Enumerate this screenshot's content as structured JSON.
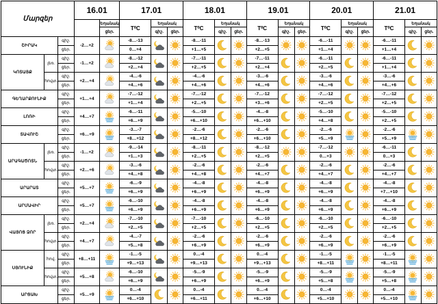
{
  "header": {
    "corner": "Մարզեր",
    "temp_label": "T⁰C",
    "weather_label": "Եղանակ",
    "night": "գիշ.",
    "day": "ցեր."
  },
  "dates": [
    "16.01",
    "17.01",
    "18.01",
    "19.01",
    "20.01",
    "21.01"
  ],
  "colors": {
    "sun": "#f7b733",
    "moon": "#f4c542",
    "cloud": "#9aa0a6",
    "dark_cloud": "#5f6368",
    "fog": "#4aa3d8"
  },
  "regions": [
    {
      "name": "ՇԻՐԱԿ",
      "rows": [
        {
          "night": "գիշ.",
          "day": "ցեր.",
          "d16": {
            "night": "-2",
            "day": "+2",
            "text": "-2…+2",
            "icon": "sun-cloud-icon"
          },
          "cells": [
            {
              "temp": [
                "-8…-13",
                "0…+4"
              ],
              "icon": "dark-cloud-moon-icon"
            },
            {
              "temp": [
                "-8…-11",
                "+1…+5"
              ],
              "icon": "moon-icon"
            },
            {
              "temp": [
                "-8…-13",
                "+2…+5"
              ],
              "icon": "sun-icon"
            },
            {
              "temp": [
                "-6…-11",
                "+1…+4"
              ],
              "icon": "sun-icon"
            },
            {
              "temp": [
                "-6…-11",
                "+1…+4"
              ],
              "icon": "moon-icon"
            }
          ]
        }
      ]
    },
    {
      "name": "ԿՈՏԱՅՔ",
      "rows": [
        {
          "sub": "լեռ.",
          "night": "գիշ.",
          "day": "ցեր.",
          "d16": {
            "text": "-1…+2",
            "icon": "sun-cloud-icon"
          },
          "cells": [
            {
              "temp": [
                "-8…-12",
                "+2…+4"
              ],
              "icon": "dark-cloud-moon-icon"
            },
            {
              "temp": [
                "-7…-11",
                "+2…+5"
              ],
              "icon": "moon-icon"
            },
            {
              "temp": [
                "-7…-11",
                "+2…+4"
              ],
              "icon": "moon-icon"
            },
            {
              "temp": [
                "-6…-11",
                "+2…+5"
              ],
              "icon": "moon-icon"
            },
            {
              "temp": [
                "-6…-11",
                "+1…+4"
              ],
              "icon": "moon-icon"
            }
          ]
        },
        {
          "sub": "հովտ.",
          "night": "գիշ.",
          "day": "ցեր.",
          "d16": {
            "text": "+2…+4",
            "icon": "sun-cloud-icon"
          },
          "cells": [
            {
              "temp": [
                "-4…-6",
                "+4…+6"
              ],
              "icon": "dark-cloud-moon-icon"
            },
            {
              "temp": [
                "-4…-6",
                "+4…+6"
              ],
              "icon": "moon-icon"
            },
            {
              "temp": [
                "-3…-6",
                "+4…+6"
              ],
              "icon": "moon-icon"
            },
            {
              "temp": [
                "-3…-6",
                "+4…+6"
              ],
              "icon": "moon-icon"
            },
            {
              "temp": [
                "-3…-6",
                "+4…+6"
              ],
              "icon": "moon-icon"
            }
          ]
        }
      ]
    },
    {
      "name": "ԳԵՂԱՐՔՈՒՆԻՔ",
      "rows": [
        {
          "night": "գիշ.",
          "day": "ցեր.",
          "d16": {
            "text": "+1…+4",
            "icon": "sun-cloud-icon"
          },
          "cells": [
            {
              "temp": [
                "-7…-12",
                "+1…+4"
              ],
              "icon": "dark-cloud-moon-icon"
            },
            {
              "temp": [
                "-7…-12",
                "+2…+5"
              ],
              "icon": "moon-icon"
            },
            {
              "temp": [
                "-7…-12",
                "+3…+6"
              ],
              "icon": "moon-icon"
            },
            {
              "temp": [
                "-7…-12",
                "+2…+5"
              ],
              "icon": "moon-icon"
            },
            {
              "temp": [
                "-7…-12",
                "+2…+5"
              ],
              "icon": "moon-icon"
            }
          ]
        }
      ]
    },
    {
      "name": "ԼՈՌԻ",
      "rows": [
        {
          "night": "գիշ.",
          "day": "ցեր.",
          "d16": {
            "text": "+4…+7",
            "icon": "fog-sun-icon"
          },
          "cells": [
            {
              "temp": [
                "-6…-11",
                "+6…+9"
              ],
              "icon": "dark-cloud-moon-icon"
            },
            {
              "temp": [
                "-5…-10",
                "+6…+10"
              ],
              "icon": "moon-icon"
            },
            {
              "temp": [
                "-4…-8",
                "+6…+10"
              ],
              "icon": "moon-icon"
            },
            {
              "temp": [
                "-5…-10",
                "+4…+8"
              ],
              "icon": "moon-icon"
            },
            {
              "temp": [
                "-5…-10",
                "+2…+5"
              ],
              "icon": "moon-icon"
            }
          ]
        }
      ]
    },
    {
      "name": "ՏԱՎՈՒՇ",
      "rows": [
        {
          "night": "գիշ.",
          "day": "ցեր.",
          "d16": {
            "text": "+6…+9",
            "icon": "fog-sun-icon"
          },
          "cells": [
            {
              "temp": [
                "-3…-7",
                "+8…+12"
              ],
              "icon": "dark-cloud-moon-icon"
            },
            {
              "temp": [
                "-2…-6",
                "+8…+12"
              ],
              "icon": "moon-icon"
            },
            {
              "temp": [
                "-2…-6",
                "+6…+10"
              ],
              "icon": "moon-icon"
            },
            {
              "temp": [
                "-2…-6",
                "+5…+9"
              ],
              "icon": "fog-sun-icon"
            },
            {
              "temp": [
                "-2…-6",
                "+5…+9"
              ],
              "icon": "fog-sun-icon"
            }
          ]
        }
      ]
    },
    {
      "name": "ԱՐԱԳԱԾՈՏՆ",
      "rows": [
        {
          "sub": "լեռ.",
          "night": "գիշ.",
          "day": "ցեր.",
          "d16": {
            "text": "-1…+2",
            "icon": "sun-cloud-icon"
          },
          "cells": [
            {
              "temp": [
                "-9…-14",
                "+1…+3"
              ],
              "icon": "dark-cloud-moon-icon"
            },
            {
              "temp": [
                "-8…-11",
                "+2…+5"
              ],
              "icon": "moon-icon"
            },
            {
              "temp": [
                "-8…-12",
                "+2…+5"
              ],
              "icon": "sun-icon"
            },
            {
              "temp": [
                "-7…-12",
                "0…+3"
              ],
              "icon": "sun-icon"
            },
            {
              "temp": [
                "-6…-11",
                "0…+3"
              ],
              "icon": "moon-icon"
            }
          ]
        },
        {
          "sub": "հովտ.",
          "night": "գիշ.",
          "day": "ցեր.",
          "d16": {
            "text": "+2…+6",
            "icon": "sun-cloud-icon"
          },
          "cells": [
            {
              "temp": [
                "-3…-6",
                "+4…+8"
              ],
              "icon": "dark-cloud-moon-icon"
            },
            {
              "temp": [
                "-2…-6",
                "+4…+8"
              ],
              "icon": "moon-icon"
            },
            {
              "temp": [
                "-2…-6",
                "+4…+7"
              ],
              "icon": "moon-icon"
            },
            {
              "temp": [
                "-2…-6",
                "+4…+7"
              ],
              "icon": "moon-icon"
            },
            {
              "temp": [
                "-2…-6",
                "+4…+7"
              ],
              "icon": "moon-icon"
            }
          ]
        }
      ]
    },
    {
      "name": "ԱՐԱՐԱՏ",
      "rows": [
        {
          "night": "գիշ.",
          "day": "ցեր.",
          "d16": {
            "text": "+5…+7",
            "icon": "fog-sun-icon"
          },
          "cells": [
            {
              "temp": [
                "-6…-9",
                "+6…+9"
              ],
              "icon": "dark-cloud-moon-icon"
            },
            {
              "temp": [
                "-4…-8",
                "+6…+9"
              ],
              "icon": "moon-icon"
            },
            {
              "temp": [
                "-4…-8",
                "+6…+9"
              ],
              "icon": "moon-icon"
            },
            {
              "temp": [
                "-4…-8",
                "+6…+9"
              ],
              "icon": "moon-icon"
            },
            {
              "temp": [
                "-4…-8",
                "+7…+10"
              ],
              "icon": "moon-icon"
            }
          ]
        }
      ]
    },
    {
      "name": "ԱՐՄԱՎԻՐ",
      "rows": [
        {
          "night": "գիշ.",
          "day": "ցեր.",
          "d16": {
            "text": "+5…+7",
            "icon": "fog-sun-icon"
          },
          "cells": [
            {
              "temp": [
                "-6…-10",
                "+6…+9"
              ],
              "icon": "dark-cloud-moon-icon"
            },
            {
              "temp": [
                "-4…-8",
                "+6…+9"
              ],
              "icon": "moon-icon"
            },
            {
              "temp": [
                "-4…-8",
                "+6…+9"
              ],
              "icon": "moon-icon"
            },
            {
              "temp": [
                "-4…-8",
                "+6…+9"
              ],
              "icon": "moon-icon"
            },
            {
              "temp": [
                "-4…-8",
                "+6…+9"
              ],
              "icon": "moon-icon"
            }
          ]
        }
      ]
    },
    {
      "name": "ՎԱՅՈՑ ՁՈՐ",
      "rows": [
        {
          "sub": "լեռ.",
          "night": "գիշ.",
          "day": "ցեր.",
          "d16": {
            "text": "+2…+4",
            "icon": "sun-cloud-icon"
          },
          "cells": [
            {
              "temp": [
                "-7…-10",
                "+2…+5"
              ],
              "icon": "dark-cloud-moon-icon"
            },
            {
              "temp": [
                "-7…-10",
                "+2…+5"
              ],
              "icon": "moon-icon"
            },
            {
              "temp": [
                "-6…-10",
                "+2…+5"
              ],
              "icon": "moon-icon"
            },
            {
              "temp": [
                "-6…-10",
                "+2…+5"
              ],
              "icon": "moon-icon"
            },
            {
              "temp": [
                "-6…-10",
                "+2…+5"
              ],
              "icon": "moon-icon"
            }
          ]
        },
        {
          "sub": "հովտ.",
          "night": "գիշ.",
          "day": "ցեր.",
          "d16": {
            "text": "+4…+7",
            "icon": "sun-cloud-icon"
          },
          "cells": [
            {
              "temp": [
                "-4…-7",
                "+5…+8"
              ],
              "icon": "dark-cloud-moon-icon"
            },
            {
              "temp": [
                "-2…-6",
                "+6…+9"
              ],
              "icon": "moon-icon"
            },
            {
              "temp": [
                "-2…-6",
                "+6…+9"
              ],
              "icon": "moon-icon"
            },
            {
              "temp": [
                "-2…-6",
                "+6…+9"
              ],
              "icon": "moon-icon"
            },
            {
              "temp": [
                "-2…-6",
                "+6…+9"
              ],
              "icon": "moon-icon"
            }
          ]
        }
      ]
    },
    {
      "name": "ՍՅՈՒՆԻՔ",
      "rows": [
        {
          "sub": "հով.",
          "night": "գիշ.",
          "day": "ցեր.",
          "d16": {
            "text": "+8…+11",
            "icon": "fog-sun-icon"
          },
          "cells": [
            {
              "temp": [
                "-1…-5",
                "+9…+13"
              ],
              "icon": "dark-cloud-moon-icon"
            },
            {
              "temp": [
                "0…-4",
                "+9…+13"
              ],
              "icon": "moon-icon"
            },
            {
              "temp": [
                "0…-4",
                "+9…+13"
              ],
              "icon": "moon-icon"
            },
            {
              "temp": [
                "-1…-5",
                "+8…+11"
              ],
              "icon": "fog-sun-icon"
            },
            {
              "temp": [
                "-1…-5",
                "+8…+11"
              ],
              "icon": "fog-sun-icon"
            }
          ]
        },
        {
          "sub": "հովտ.",
          "night": "գիշ.",
          "day": "ցեր.",
          "d16": {
            "text": "+5…+8",
            "icon": "sun-cloud-icon"
          },
          "cells": [
            {
              "temp": [
                "-6…-10",
                "+6…+9"
              ],
              "icon": "dark-cloud-moon-icon"
            },
            {
              "temp": [
                "-5…-9",
                "+6…+9"
              ],
              "icon": "moon-icon"
            },
            {
              "temp": [
                "-5…-9",
                "+6…+9"
              ],
              "icon": "moon-icon"
            },
            {
              "temp": [
                "-5…-9",
                "+5…+8"
              ],
              "icon": "fog-sun-icon"
            },
            {
              "temp": [
                "-5…-9",
                "+5…+8"
              ],
              "icon": "fog-sun-icon"
            }
          ]
        }
      ]
    },
    {
      "name": "ԱՐՑԱԽ",
      "rows": [
        {
          "night": "գիշ.",
          "day": "ցեր.",
          "d16": {
            "text": "+5…+9",
            "icon": "fog-sun-icon"
          },
          "cells": [
            {
              "temp": [
                "0…-4",
                "+6…+10"
              ],
              "icon": "moon-icon"
            },
            {
              "temp": [
                "0…-4",
                "+6…+11"
              ],
              "icon": "moon-icon"
            },
            {
              "temp": [
                "0…-4",
                "+6…+10"
              ],
              "icon": "moon-icon"
            },
            {
              "temp": [
                "0…-4",
                "+5…+10"
              ],
              "icon": "sun-icon"
            },
            {
              "temp": [
                "0…-4",
                "+5…+10"
              ],
              "icon": "fog-sun-icon"
            }
          ]
        }
      ]
    }
  ]
}
